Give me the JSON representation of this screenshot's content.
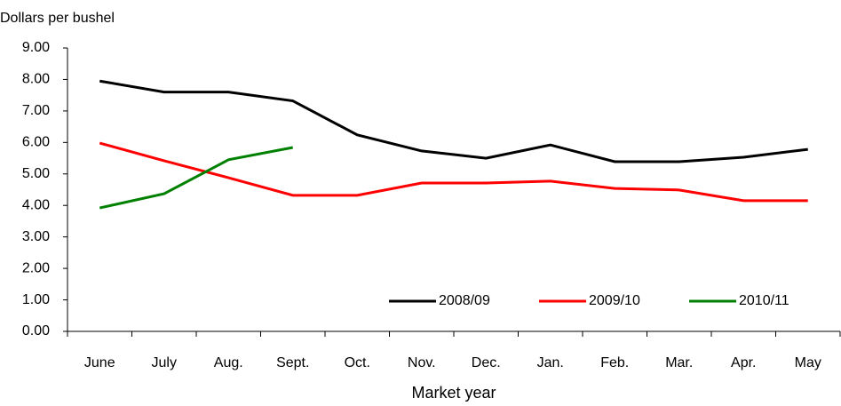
{
  "chart_data": {
    "type": "line",
    "y_axis_label": "Dollars per bushel",
    "x_axis_label": "Market year",
    "categories": [
      "June",
      "July",
      "Aug.",
      "Sept.",
      "Oct.",
      "Nov.",
      "Dec.",
      "Jan.",
      "Feb.",
      "Mar.",
      "Apr.",
      "May"
    ],
    "series": [
      {
        "name": "2008/09",
        "color": "#000000",
        "values": [
          7.95,
          7.6,
          7.6,
          7.32,
          6.24,
          5.73,
          5.5,
          5.92,
          5.39,
          5.39,
          5.53,
          5.78
        ]
      },
      {
        "name": "2009/10",
        "color": "#ff0000",
        "values": [
          5.98,
          5.42,
          4.88,
          4.32,
          4.32,
          4.71,
          4.71,
          4.77,
          4.54,
          4.49,
          4.15,
          4.15
        ]
      },
      {
        "name": "2010/11",
        "color": "#008000",
        "values": [
          3.92,
          4.37,
          5.45,
          5.84,
          null,
          null,
          null,
          null,
          null,
          null,
          null,
          null
        ]
      }
    ],
    "ylim": [
      0,
      9
    ],
    "yticks": [
      {
        "value": 0,
        "label": "0.00"
      },
      {
        "value": 1,
        "label": "1.00"
      },
      {
        "value": 2,
        "label": "2.00"
      },
      {
        "value": 3,
        "label": "3.00"
      },
      {
        "value": 4,
        "label": "4.00"
      },
      {
        "value": 5,
        "label": "5.00"
      },
      {
        "value": 6,
        "label": "6.00"
      },
      {
        "value": 7,
        "label": "7.00"
      },
      {
        "value": 8,
        "label": "8.00"
      },
      {
        "value": 9,
        "label": "9.00"
      }
    ],
    "grid": false,
    "legend": "bottom-right"
  }
}
